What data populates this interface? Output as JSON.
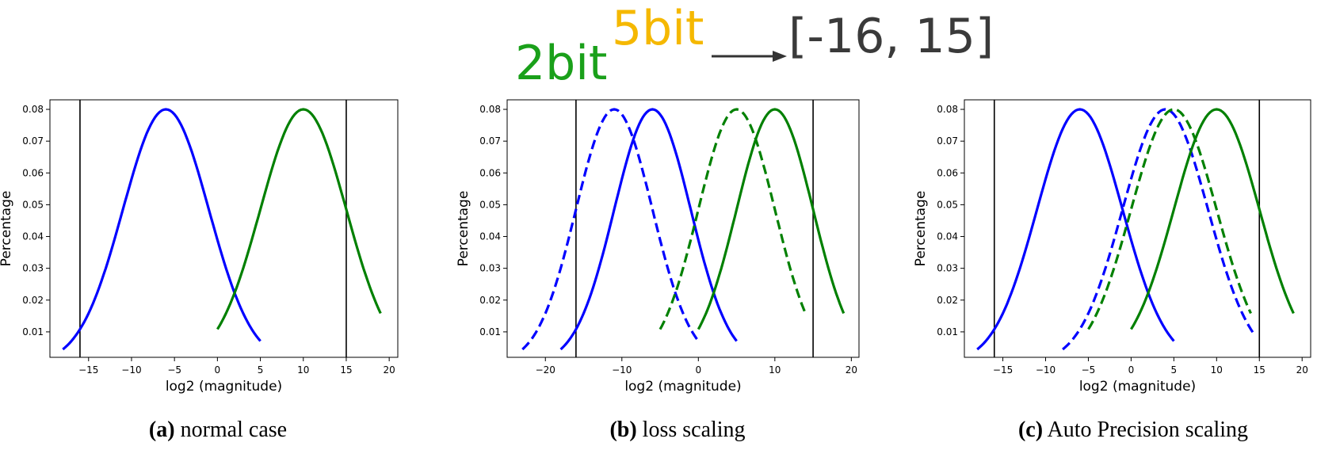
{
  "header": {
    "base_label": "2bit",
    "superscript_label": "5bit",
    "range_label": "[-16, 15]",
    "colors": {
      "base": "#1aa01a",
      "superscript": "#f5b800",
      "range": "#3a3a3a",
      "arrow": "#333333"
    }
  },
  "chart_data": [
    {
      "type": "line",
      "xlabel": "log2 (magnitude)",
      "ylabel": "Percentage",
      "xlim": [
        -19.5,
        21
      ],
      "ylim": [
        0.002,
        0.083
      ],
      "xticks": [
        -15,
        -10,
        -5,
        0,
        5,
        10,
        15,
        20
      ],
      "yticks": [
        0.01,
        0.02,
        0.03,
        0.04,
        0.05,
        0.06,
        0.07,
        0.08
      ],
      "vlines": [
        -16,
        15
      ],
      "caption_label": "(a)",
      "caption_text": "normal case",
      "series": [
        {
          "color": "#0000ff",
          "style": "solid",
          "mean": -6,
          "x_start": -18,
          "x_end": 5
        },
        {
          "color": "#008000",
          "style": "solid",
          "mean": 10,
          "x_start": 0,
          "x_end": 19
        }
      ]
    },
    {
      "type": "line",
      "xlabel": "log2 (magnitude)",
      "ylabel": "Percentage",
      "xlim": [
        -25,
        21
      ],
      "ylim": [
        0.002,
        0.083
      ],
      "xticks": [
        -20,
        -10,
        0,
        10,
        20
      ],
      "yticks": [
        0.01,
        0.02,
        0.03,
        0.04,
        0.05,
        0.06,
        0.07,
        0.08
      ],
      "vlines": [
        -16,
        15
      ],
      "caption_label": "(b)",
      "caption_text": "loss scaling",
      "series": [
        {
          "color": "#0000ff",
          "style": "dashed",
          "mean": -11,
          "x_start": -23,
          "x_end": 0
        },
        {
          "color": "#0000ff",
          "style": "solid",
          "mean": -6,
          "x_start": -18,
          "x_end": 5
        },
        {
          "color": "#008000",
          "style": "dashed",
          "mean": 5,
          "x_start": -5,
          "x_end": 14
        },
        {
          "color": "#008000",
          "style": "solid",
          "mean": 10,
          "x_start": 0,
          "x_end": 19
        }
      ]
    },
    {
      "type": "line",
      "xlabel": "log2 (magnitude)",
      "ylabel": "Percentage",
      "xlim": [
        -19.5,
        21
      ],
      "ylim": [
        0.002,
        0.083
      ],
      "xticks": [
        -15,
        -10,
        -5,
        0,
        5,
        10,
        15,
        20
      ],
      "yticks": [
        0.01,
        0.02,
        0.03,
        0.04,
        0.05,
        0.06,
        0.07,
        0.08
      ],
      "vlines": [
        -16,
        15
      ],
      "caption_label": "(c)",
      "caption_text": "Auto Precision scaling",
      "series": [
        {
          "color": "#0000ff",
          "style": "solid",
          "mean": -6,
          "x_start": -18,
          "x_end": 5
        },
        {
          "color": "#0000ff",
          "style": "dashed",
          "mean": 4,
          "x_start": -8,
          "x_end": 14.5
        },
        {
          "color": "#008000",
          "style": "dashed",
          "mean": 5,
          "x_start": -5,
          "x_end": 14
        },
        {
          "color": "#008000",
          "style": "solid",
          "mean": 10,
          "x_start": 0,
          "x_end": 19
        }
      ]
    }
  ]
}
